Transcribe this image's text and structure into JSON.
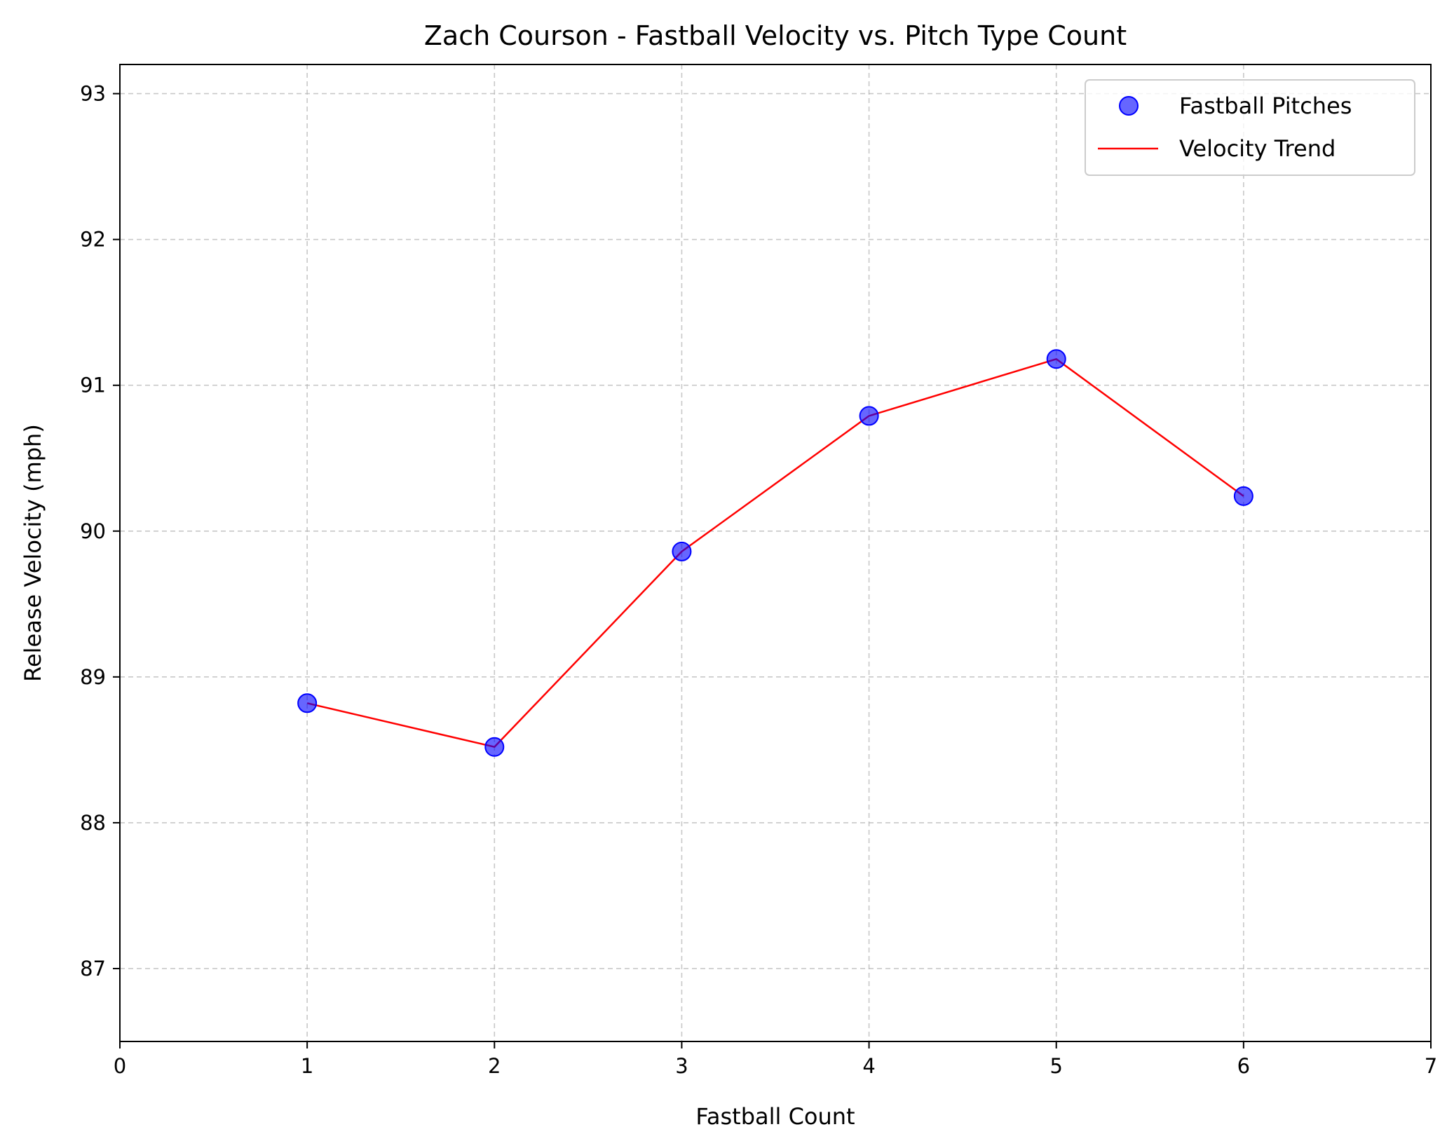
{
  "chart_data": {
    "type": "scatter",
    "title": "Zach Courson - Fastball Velocity vs. Pitch Type Count",
    "xlabel": "Fastball Count",
    "ylabel": "Release Velocity (mph)",
    "xlim": [
      0,
      7
    ],
    "ylim": [
      86.5,
      93.2
    ],
    "xticks": [
      "0",
      "1",
      "2",
      "3",
      "4",
      "5",
      "6",
      "7"
    ],
    "yticks": [
      "87",
      "88",
      "89",
      "90",
      "91",
      "92",
      "93"
    ],
    "grid": true,
    "legend_position": "top-right",
    "series": [
      {
        "name": "Fastball Pitches",
        "kind": "scatter",
        "color": "#0000ff",
        "x": [
          1,
          2,
          3,
          4,
          5,
          6
        ],
        "y": [
          88.82,
          88.52,
          89.86,
          90.79,
          91.18,
          90.24
        ]
      },
      {
        "name": "Velocity Trend",
        "kind": "line",
        "color": "#ff0000",
        "x": [
          1,
          2,
          3,
          4,
          5,
          6
        ],
        "y": [
          88.82,
          88.52,
          89.86,
          90.79,
          91.18,
          90.24
        ]
      }
    ]
  }
}
